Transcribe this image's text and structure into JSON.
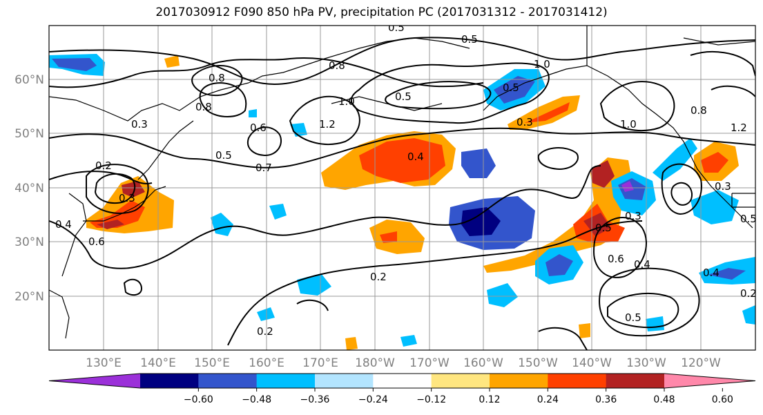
{
  "title": "2017030912 F090 850 hPa PV, precipitation PC (2017031312 - 2017031412)",
  "lat_labels": [
    "60°N",
    "50°N",
    "40°N",
    "30°N",
    "20°N"
  ],
  "lon_labels": [
    "130°E",
    "140°E",
    "150°E",
    "160°E",
    "170°E",
    "180°W",
    "170°W",
    "160°W",
    "150°W",
    "140°W",
    "130°W",
    "120°W"
  ],
  "colorbar": {
    "colors": [
      "#9b30d9",
      "#000080",
      "#3355cc",
      "#00bfff",
      "#b3e5ff",
      "#ffffff",
      "#ffe680",
      "#ffa500",
      "#ff4000",
      "#b22222",
      "#ff88aa"
    ],
    "ticks": [
      "−0.60",
      "−0.48",
      "−0.36",
      "−0.24",
      "−0.12",
      "0.12",
      "0.24",
      "0.36",
      "0.48",
      "0.60"
    ]
  },
  "contour_labels": [
    "0.5",
    "0.5",
    "0.8",
    "0.8",
    "1.0",
    "1.0",
    "0.5",
    "1.2",
    "0.8",
    "0.5",
    "0.6",
    "0.3",
    "0.5",
    "0.7",
    "0.4",
    "0.3",
    "1.0",
    "0.8",
    "1.2",
    "0.2",
    "0.3",
    "0.4",
    "0.6",
    "0.5",
    "0.3",
    "0.5",
    "0.4",
    "0.6",
    "0.2",
    "0.2",
    "0.5",
    "0.4",
    "0.2",
    "0.3"
  ]
}
